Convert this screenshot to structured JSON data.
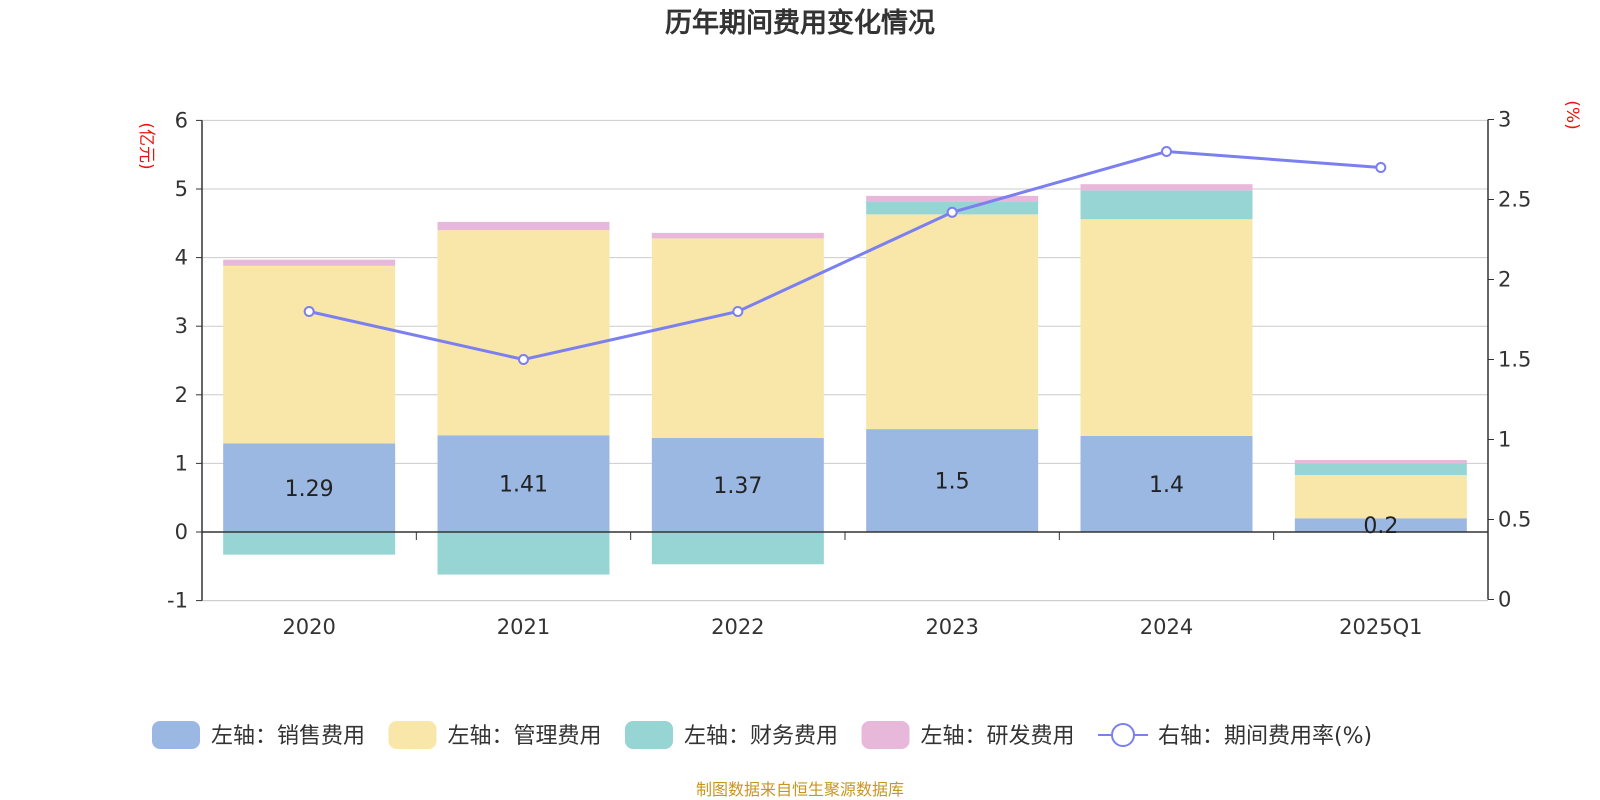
{
  "chart_data": {
    "type": "bar",
    "title": "历年期间费用变化情况",
    "categories": [
      "2020",
      "2021",
      "2022",
      "2023",
      "2024",
      "2025Q1"
    ],
    "left_axis": {
      "unit": "(亿元)",
      "min": -1,
      "max": 6,
      "ticks": [
        "-1",
        "0",
        "1",
        "2",
        "3",
        "4",
        "5",
        "6"
      ]
    },
    "right_axis": {
      "unit": "(%)",
      "min": 0,
      "max": 3,
      "ticks": [
        "0",
        "0.5",
        "1",
        "1.5",
        "2",
        "2.5",
        "3"
      ]
    },
    "stacked": true,
    "grid": true,
    "series": [
      {
        "name": "左轴：销售费用",
        "axis": "left",
        "color": "#9bb8e2",
        "values": [
          1.29,
          1.41,
          1.37,
          1.5,
          1.4,
          0.2
        ],
        "labels": [
          "1.29",
          "1.41",
          "1.37",
          "1.5",
          "1.4",
          "0.2"
        ]
      },
      {
        "name": "左轴：管理费用",
        "axis": "left",
        "color": "#f8e7a8",
        "values": [
          2.59,
          2.99,
          2.91,
          3.13,
          3.16,
          0.63
        ]
      },
      {
        "name": "左轴：财务费用",
        "axis": "left",
        "color": "#97d4d4",
        "values": [
          -0.33,
          -0.62,
          -0.47,
          0.18,
          0.42,
          0.17
        ]
      },
      {
        "name": "左轴：研发费用",
        "axis": "left",
        "color": "#e8b8da",
        "values": [
          0.09,
          0.12,
          0.08,
          0.09,
          0.09,
          0.05
        ]
      },
      {
        "name": "右轴：期间费用率(%)",
        "axis": "right",
        "type": "line",
        "color": "#7b7ff0",
        "values": [
          1.8,
          1.5,
          1.8,
          2.42,
          2.8,
          2.7
        ]
      }
    ],
    "legend_position": "bottom",
    "source_note": "制图数据来自恒生聚源数据库"
  }
}
